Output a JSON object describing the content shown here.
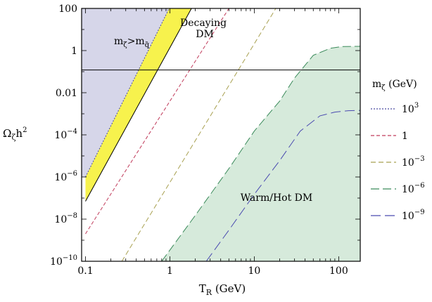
{
  "chart_data": {
    "type": "line",
    "xlabel": {
      "main": "T",
      "sub": "R",
      "rest": " (GeV)"
    },
    "ylabel": {
      "main": "Ω",
      "sub": "ζ",
      "rest": "h",
      "sup": "2"
    },
    "xscale": "log",
    "yscale": "log",
    "xlim": [
      0.09,
      180
    ],
    "ylim": [
      1e-10,
      100
    ],
    "x_ticks": [
      {
        "value": 0.1,
        "label": "0.1"
      },
      {
        "value": 1,
        "label": "1"
      },
      {
        "value": 10,
        "label": "10"
      },
      {
        "value": 100,
        "label": "100"
      }
    ],
    "y_ticks": [
      {
        "value": 100,
        "base": "100",
        "exp": ""
      },
      {
        "value": 1,
        "base": "1",
        "exp": ""
      },
      {
        "value": 0.01,
        "base": "0.01",
        "exp": ""
      },
      {
        "value": 0.0001,
        "base": "10",
        "exp": "−4"
      },
      {
        "value": 1e-06,
        "base": "10",
        "exp": "−6"
      },
      {
        "value": 1e-08,
        "base": "10",
        "exp": "−8"
      },
      {
        "value": 1e-10,
        "base": "10",
        "exp": "−10"
      }
    ],
    "reference_line": {
      "y": 0.12
    },
    "regions": {
      "excluded": {
        "label": "m",
        "label_sub": "ζ",
        "label_mid": ">m",
        "label_sub2": "q̃",
        "color": "#d6d6e9",
        "boundary": [
          [
            0.1,
            1e-06
          ],
          [
            0.98,
            100
          ]
        ]
      },
      "decaying": {
        "label_line1": "Decaying",
        "label_line2": "DM",
        "color": "#f7f24d",
        "lower_boundary": [
          [
            0.1,
            7e-08
          ],
          [
            1.8,
            100
          ]
        ]
      },
      "warm_hot": {
        "label": "Warm/Hot DM",
        "color": "#d6eadb",
        "boundary": [
          [
            0.8,
            1e-10
          ],
          [
            2,
            1.5e-08
          ],
          [
            5,
            2.5e-06
          ],
          [
            10,
            0.00015
          ],
          [
            20,
            0.004
          ],
          [
            30,
            0.05
          ],
          [
            50,
            0.6
          ],
          [
            80,
            1.3
          ],
          [
            110,
            1.55
          ],
          [
            180,
            1.6
          ]
        ]
      }
    },
    "series": [
      {
        "name": "10",
        "name_sup": "3",
        "color": "#4a4aa0",
        "dash": "2,2",
        "points": [
          [
            0.1,
            1e-06
          ],
          [
            0.98,
            100
          ]
        ]
      },
      {
        "name": "1",
        "name_sup": "",
        "color": "#c03a5a",
        "dash": "5,3",
        "points": [
          [
            0.1,
            2e-09
          ],
          [
            5,
            100
          ]
        ]
      },
      {
        "name": "10",
        "name_sup": "−3",
        "color": "#a8a050",
        "dash": "7,4",
        "points": [
          [
            0.27,
            1e-10
          ],
          [
            18,
            100
          ]
        ]
      },
      {
        "name": "10",
        "name_sup": "−6",
        "color": "#3a8a5a",
        "dash": "12,5",
        "points": [
          [
            0.8,
            1e-10
          ],
          [
            2,
            1.5e-08
          ],
          [
            5,
            2.5e-06
          ],
          [
            10,
            0.00015
          ],
          [
            20,
            0.004
          ],
          [
            30,
            0.05
          ],
          [
            50,
            0.6
          ],
          [
            80,
            1.3
          ],
          [
            110,
            1.55
          ],
          [
            180,
            1.6
          ]
        ]
      },
      {
        "name": "10",
        "name_sup": "−9",
        "color": "#4a4ab0",
        "dash": "14,6",
        "points": [
          [
            2.7,
            1e-10
          ],
          [
            5,
            3e-09
          ],
          [
            10,
            1.5e-07
          ],
          [
            20,
            6e-06
          ],
          [
            35,
            0.00015
          ],
          [
            60,
            0.0008
          ],
          [
            90,
            0.0012
          ],
          [
            130,
            0.0014
          ],
          [
            180,
            0.00145
          ]
        ]
      }
    ],
    "legend": {
      "title_main": "m",
      "title_sub": "ζ",
      "title_rest": " (GeV)",
      "placement": "right"
    }
  }
}
